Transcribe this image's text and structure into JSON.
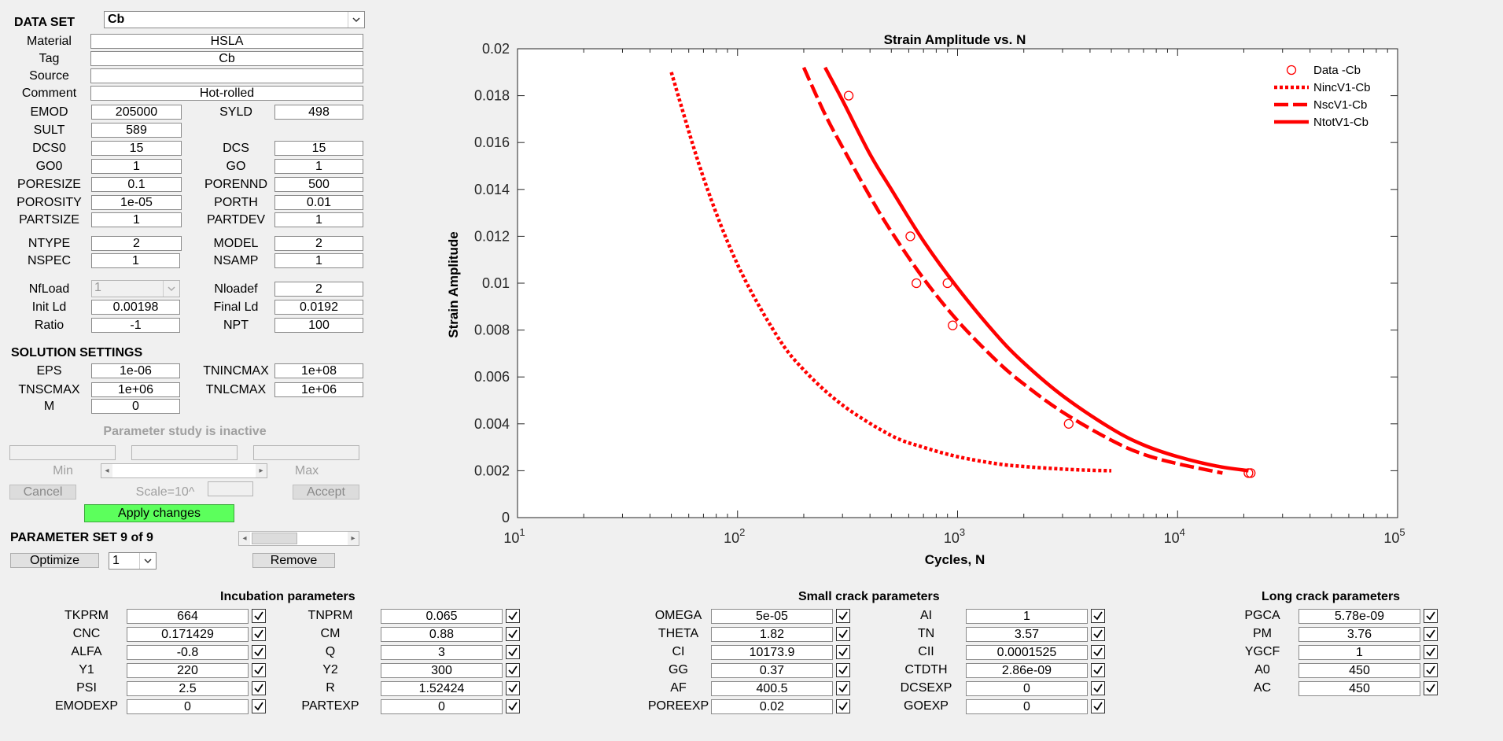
{
  "dataset": {
    "label": "DATA SET",
    "value": "Cb"
  },
  "props": {
    "material": {
      "label": "Material",
      "value": "HSLA"
    },
    "tag": {
      "label": "Tag",
      "value": "Cb"
    },
    "source": {
      "label": "Source",
      "value": ""
    },
    "comment": {
      "label": "Comment",
      "value": "Hot-rolled"
    },
    "emod": {
      "label": "EMOD",
      "value": "205000"
    },
    "syld": {
      "label": "SYLD",
      "value": "498"
    },
    "sult": {
      "label": "SULT",
      "value": "589"
    },
    "dcs0": {
      "label": "DCS0",
      "value": "15"
    },
    "dcs": {
      "label": "DCS",
      "value": "15"
    },
    "go0": {
      "label": "GO0",
      "value": "1"
    },
    "go": {
      "label": "GO",
      "value": "1"
    },
    "poresize": {
      "label": "PORESIZE",
      "value": "0.1"
    },
    "porennd": {
      "label": "PORENND",
      "value": "500"
    },
    "porosity": {
      "label": "POROSITY",
      "value": "1e-05"
    },
    "porth": {
      "label": "PORTH",
      "value": "0.01"
    },
    "partsize": {
      "label": "PARTSIZE",
      "value": "1"
    },
    "partdev": {
      "label": "PARTDEV",
      "value": "1"
    },
    "ntype": {
      "label": "NTYPE",
      "value": "2"
    },
    "model": {
      "label": "MODEL",
      "value": "2"
    },
    "nspec": {
      "label": "NSPEC",
      "value": "1"
    },
    "nsamp": {
      "label": "NSAMP",
      "value": "1"
    },
    "nfload": {
      "label": "NfLoad",
      "value": "1"
    },
    "nloadef": {
      "label": "Nloadef",
      "value": "2"
    },
    "initld": {
      "label": "Init Ld",
      "value": "0.00198"
    },
    "finalld": {
      "label": "Final Ld",
      "value": "0.0192"
    },
    "ratio": {
      "label": "Ratio",
      "value": "-1"
    },
    "npt": {
      "label": "NPT",
      "value": "100"
    }
  },
  "solution": {
    "header": "SOLUTION SETTINGS",
    "eps": {
      "label": "EPS",
      "value": "1e-06"
    },
    "tnincmax": {
      "label": "TNINCMAX",
      "value": "1e+08"
    },
    "tnscmax": {
      "label": "TNSCMAX",
      "value": "1e+06"
    },
    "tnlcmax": {
      "label": "TNLCMAX",
      "value": "1e+06"
    },
    "m": {
      "label": "M",
      "value": "0"
    }
  },
  "param_study": {
    "status": "Parameter study is inactive",
    "min_label": "Min",
    "max_label": "Max",
    "cancel": "Cancel",
    "scale_label": "Scale=10^",
    "accept": "Accept",
    "apply": "Apply changes"
  },
  "param_set": {
    "label": "PARAMETER SET 9 of 9",
    "optimize": "Optimize",
    "selector": "1",
    "remove": "Remove"
  },
  "incubation": {
    "header": "Incubation parameters",
    "rows": [
      {
        "l1": "TKPRM",
        "v1": "664",
        "l2": "TNPRM",
        "v2": "0.065"
      },
      {
        "l1": "CNC",
        "v1": "0.171429",
        "l2": "CM",
        "v2": "0.88"
      },
      {
        "l1": "ALFA",
        "v1": "-0.8",
        "l2": "Q",
        "v2": "3"
      },
      {
        "l1": "Y1",
        "v1": "220",
        "l2": "Y2",
        "v2": "300"
      },
      {
        "l1": "PSI",
        "v1": "2.5",
        "l2": "R",
        "v2": "1.52424"
      },
      {
        "l1": "EMODEXP",
        "v1": "0",
        "l2": "PARTEXP",
        "v2": "0"
      }
    ]
  },
  "small_crack": {
    "header": "Small crack parameters",
    "rows": [
      {
        "l1": "OMEGA",
        "v1": "5e-05",
        "l2": "AI",
        "v2": "1"
      },
      {
        "l1": "THETA",
        "v1": "1.82",
        "l2": "TN",
        "v2": "3.57"
      },
      {
        "l1": "CI",
        "v1": "10173.9",
        "l2": "CII",
        "v2": "0.0001525"
      },
      {
        "l1": "GG",
        "v1": "0.37",
        "l2": "CTDTH",
        "v2": "2.86e-09"
      },
      {
        "l1": "AF",
        "v1": "400.5",
        "l2": "DCSEXP",
        "v2": "0"
      },
      {
        "l1": "POREEXP",
        "v1": "0.02",
        "l2": "GOEXP",
        "v2": "0"
      }
    ]
  },
  "long_crack": {
    "header": "Long crack parameters",
    "rows": [
      {
        "l1": "PGCA",
        "v1": "5.78e-09"
      },
      {
        "l1": "PM",
        "v1": "3.76"
      },
      {
        "l1": "YGCF",
        "v1": "1"
      },
      {
        "l1": "A0",
        "v1": "450"
      },
      {
        "l1": "AC",
        "v1": "450"
      }
    ]
  },
  "chart_data": {
    "type": "line",
    "title": "Strain Amplitude vs. N",
    "xlabel": "Cycles, N",
    "ylabel": "Strain Amplitude",
    "xscale": "log",
    "xlim": [
      10,
      100000
    ],
    "ylim": [
      0,
      0.02
    ],
    "xticks": [
      {
        "base": "10",
        "exp": "1",
        "value": 10
      },
      {
        "base": "10",
        "exp": "2",
        "value": 100
      },
      {
        "base": "10",
        "exp": "3",
        "value": 1000
      },
      {
        "base": "10",
        "exp": "4",
        "value": 10000
      },
      {
        "base": "10",
        "exp": "5",
        "value": 100000
      }
    ],
    "yticks": [
      "0",
      "0.002",
      "0.004",
      "0.006",
      "0.008",
      "0.01",
      "0.012",
      "0.014",
      "0.016",
      "0.018",
      "0.02"
    ],
    "legend_position": "top-right",
    "color": "#ff0000",
    "series": [
      {
        "name": "Data -Cb",
        "style": "markers",
        "x": [
          320,
          610,
          650,
          900,
          950,
          3200,
          21000,
          21500
        ],
        "y": [
          0.018,
          0.012,
          0.01,
          0.01,
          0.0082,
          0.004,
          0.0019,
          0.0019
        ]
      },
      {
        "name": "NincV1-Cb",
        "style": "dotted",
        "x": [
          50,
          70,
          100,
          150,
          200,
          300,
          500,
          700,
          1000,
          1500,
          2000,
          3000,
          4000,
          5000
        ],
        "y": [
          0.019,
          0.0145,
          0.0108,
          0.0078,
          0.0063,
          0.0048,
          0.0035,
          0.003,
          0.0026,
          0.0023,
          0.00218,
          0.00207,
          0.00202,
          0.002
        ]
      },
      {
        "name": "NscV1-Cb",
        "style": "dashed",
        "x": [
          200,
          250,
          300,
          400,
          500,
          700,
          1000,
          1500,
          2000,
          3000,
          5000,
          7000,
          10000,
          16000
        ],
        "y": [
          0.0192,
          0.0172,
          0.0158,
          0.0137,
          0.0122,
          0.0102,
          0.0084,
          0.0067,
          0.0057,
          0.0045,
          0.0033,
          0.0027,
          0.0023,
          0.0019
        ]
      },
      {
        "name": "NtotV1-Cb",
        "style": "solid",
        "x": [
          250,
          300,
          400,
          500,
          700,
          1000,
          1500,
          2000,
          3000,
          5000,
          7000,
          10000,
          15000,
          21000
        ],
        "y": [
          0.0192,
          0.0178,
          0.0155,
          0.014,
          0.0118,
          0.0098,
          0.0078,
          0.0066,
          0.0052,
          0.0038,
          0.0031,
          0.0026,
          0.0022,
          0.002
        ]
      }
    ]
  }
}
